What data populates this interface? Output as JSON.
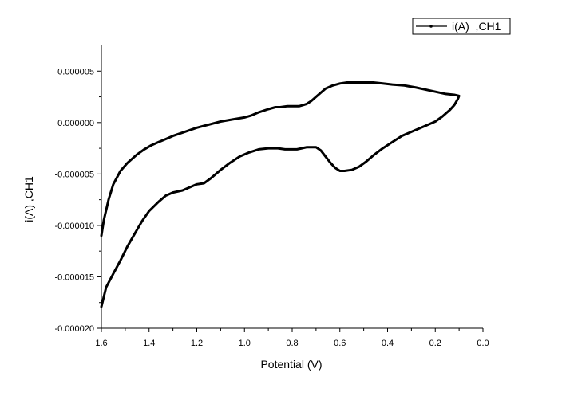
{
  "chart_data": {
    "type": "line",
    "title": "",
    "xlabel": "Potential (V)",
    "ylabel": "i(A)  ,CH1",
    "xlim": [
      1.6,
      0.0
    ],
    "ylim": [
      -2e-05,
      7.5e-06
    ],
    "x_ticks": [
      1.6,
      1.4,
      1.2,
      1.0,
      0.8,
      0.6,
      0.4,
      0.2,
      0.0
    ],
    "x_tick_labels": [
      "1.6",
      "1.4",
      "1.2",
      "1.0",
      "0.8",
      "0.6",
      "0.4",
      "0.2",
      "0.0"
    ],
    "y_ticks": [
      -2e-05,
      -1.5e-05,
      -1e-05,
      -5e-06,
      0.0,
      5e-06
    ],
    "y_tick_labels": [
      "-0.000020",
      "-0.000015",
      "-0.000010",
      "-0.000005",
      "0.000000",
      "0.000005"
    ],
    "grid": false,
    "legend_position": "top-right",
    "series": [
      {
        "name": "i(A)  ,CH1",
        "color": "#000000",
        "x": [
          1.6,
          1.59,
          1.57,
          1.55,
          1.52,
          1.49,
          1.45,
          1.42,
          1.39,
          1.36,
          1.33,
          1.3,
          1.25,
          1.2,
          1.15,
          1.1,
          1.05,
          1.0,
          0.97,
          0.94,
          0.9,
          0.87,
          0.85,
          0.82,
          0.8,
          0.77,
          0.74,
          0.72,
          0.7,
          0.68,
          0.66,
          0.63,
          0.6,
          0.57,
          0.54,
          0.5,
          0.46,
          0.42,
          0.38,
          0.33,
          0.28,
          0.22,
          0.16,
          0.12,
          0.1,
          0.105,
          0.12,
          0.14,
          0.17,
          0.2,
          0.24,
          0.29,
          0.34,
          0.38,
          0.42,
          0.46,
          0.49,
          0.52,
          0.55,
          0.58,
          0.6,
          0.62,
          0.64,
          0.66,
          0.68,
          0.7,
          0.72,
          0.74,
          0.76,
          0.78,
          0.8,
          0.83,
          0.86,
          0.9,
          0.94,
          0.98,
          1.02,
          1.06,
          1.1,
          1.14,
          1.17,
          1.2,
          1.23,
          1.26,
          1.3,
          1.33,
          1.36,
          1.4,
          1.43,
          1.46,
          1.49,
          1.52,
          1.55,
          1.58,
          1.6
        ],
        "y": [
          -1.1e-05,
          -9.5e-06,
          -7.5e-06,
          -6e-06,
          -4.7e-06,
          -3.9e-06,
          -3.1e-06,
          -2.6e-06,
          -2.2e-06,
          -1.9e-06,
          -1.6e-06,
          -1.3e-06,
          -9e-07,
          -5e-07,
          -2e-07,
          1e-07,
          3e-07,
          5e-07,
          7e-07,
          1e-06,
          1.3e-06,
          1.5e-06,
          1.5e-06,
          1.6e-06,
          1.6e-06,
          1.6e-06,
          1.8e-06,
          2.1e-06,
          2.5e-06,
          2.9e-06,
          3.3e-06,
          3.6e-06,
          3.8e-06,
          3.9e-06,
          3.9e-06,
          3.9e-06,
          3.9e-06,
          3.8e-06,
          3.7e-06,
          3.6e-06,
          3.4e-06,
          3.1e-06,
          2.8e-06,
          2.7e-06,
          2.6e-06,
          2.3e-06,
          1.7e-06,
          1.2e-06,
          6e-07,
          1e-07,
          -3e-07,
          -8e-07,
          -1.3e-06,
          -1.9e-06,
          -2.5e-06,
          -3.2e-06,
          -3.8e-06,
          -4.3e-06,
          -4.6e-06,
          -4.7e-06,
          -4.7e-06,
          -4.4e-06,
          -3.9e-06,
          -3.3e-06,
          -2.7e-06,
          -2.4e-06,
          -2.4e-06,
          -2.4e-06,
          -2.5e-06,
          -2.6e-06,
          -2.6e-06,
          -2.6e-06,
          -2.5e-06,
          -2.5e-06,
          -2.6e-06,
          -2.9e-06,
          -3.3e-06,
          -3.9e-06,
          -4.6e-06,
          -5.4e-06,
          -5.9e-06,
          -6e-06,
          -6.3e-06,
          -6.6e-06,
          -6.8e-06,
          -7.1e-06,
          -7.7e-06,
          -8.6e-06,
          -9.6e-06,
          -1.08e-05,
          -1.2e-05,
          -1.34e-05,
          -1.47e-05,
          -1.6e-05,
          -1.79e-05
        ]
      }
    ]
  }
}
